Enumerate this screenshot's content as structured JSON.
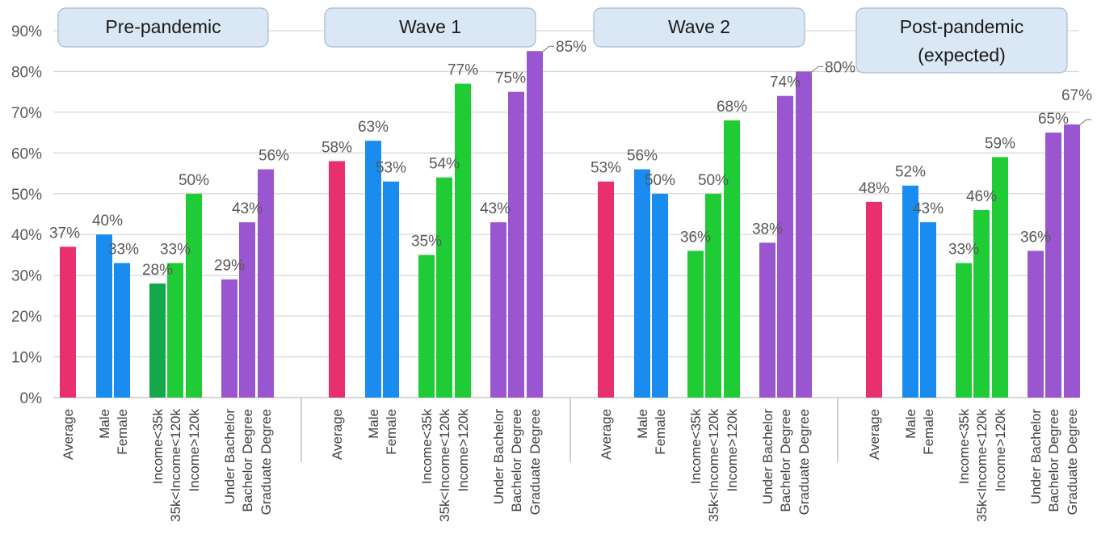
{
  "chart_data": {
    "type": "bar",
    "ylim": [
      0,
      90
    ],
    "yticks": [
      "0%",
      "10%",
      "20%",
      "30%",
      "40%",
      "50%",
      "60%",
      "70%",
      "80%",
      "90%"
    ],
    "grid": true,
    "categories": [
      "Average",
      "Male",
      "Female",
      "Income<35k",
      "35k<Income<120k",
      "Income>120k",
      "Under Bachelor",
      "Bachelor Degree",
      "Graduate Degree"
    ],
    "category_groups": [
      "demographic average",
      "gender",
      "gender",
      "income",
      "income",
      "income",
      "education",
      "education",
      "education"
    ],
    "panels": [
      {
        "title": "Pre-pandemic",
        "values": [
          37,
          40,
          33,
          28,
          33,
          50,
          29,
          43,
          56
        ],
        "labels": [
          "37%",
          "40%",
          "33%",
          "28%",
          "33%",
          "50%",
          "29%",
          "43%",
          "56%"
        ]
      },
      {
        "title": "Wave 1",
        "values": [
          58,
          63,
          53,
          35,
          54,
          77,
          43,
          75,
          85
        ],
        "labels": [
          "58%",
          "63%",
          "53%",
          "35%",
          "54%",
          "77%",
          "43%",
          "75%",
          "85%"
        ]
      },
      {
        "title": "Wave 2",
        "values": [
          53,
          56,
          50,
          36,
          50,
          68,
          38,
          74,
          80
        ],
        "labels": [
          "53%",
          "56%",
          "50%",
          "36%",
          "50%",
          "68%",
          "38%",
          "74%",
          "80%"
        ]
      },
      {
        "title": "Post-pandemic (expected)",
        "values": [
          48,
          52,
          43,
          33,
          46,
          59,
          36,
          65,
          67
        ],
        "labels": [
          "48%",
          "52%",
          "43%",
          "33%",
          "46%",
          "59%",
          "36%",
          "65%",
          "67%"
        ]
      }
    ],
    "colors": {
      "average": "#e8306f",
      "gender": "#1a8cf0",
      "income": "#1fcc36",
      "income_first_pre": "#15a84a",
      "education": "#9a55d0",
      "grid": "#d9d9d9",
      "title_box": "#dae7f5"
    }
  }
}
